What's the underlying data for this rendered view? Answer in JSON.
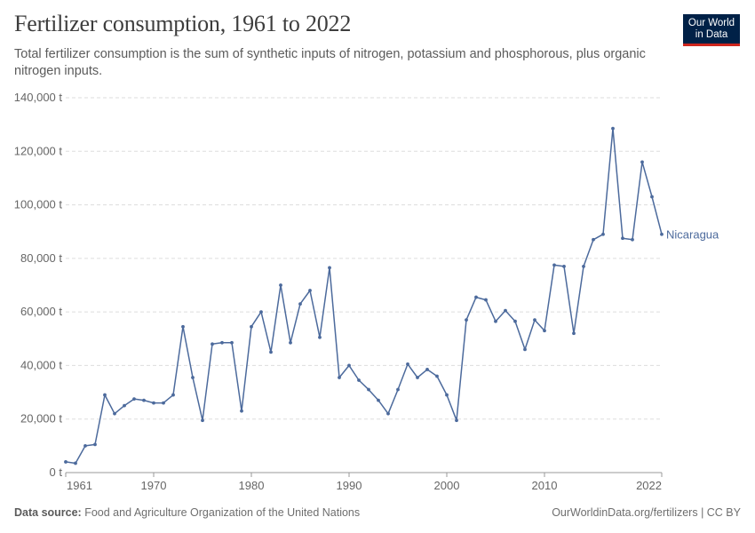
{
  "title": "Fertilizer consumption, 1961 to 2022",
  "subtitle": "Total fertilizer consumption is the sum of synthetic inputs of nitrogen, potassium and phosphorous, plus organic nitrogen inputs.",
  "logo": {
    "line1": "Our World",
    "line2": "in Data"
  },
  "footer": {
    "source_label": "Data source:",
    "source_text": "Food and Agriculture Organization of the United Nations",
    "right_text": "OurWorldinData.org/fertilizers | CC BY"
  },
  "colors": {
    "line": "#4c6a9c",
    "grid": "#dddddd",
    "text": "#5b5b5b",
    "logo_bg": "#002147",
    "logo_accent": "#ce261e"
  },
  "chart_data": {
    "type": "line",
    "title": "Fertilizer consumption, 1961 to 2022",
    "xlim": [
      1961,
      2022
    ],
    "ylim": [
      0,
      140000
    ],
    "x_ticks": [
      1961,
      1970,
      1980,
      1990,
      2000,
      2010,
      2022
    ],
    "y_ticks": [
      0,
      20000,
      40000,
      60000,
      80000,
      100000,
      120000,
      140000
    ],
    "y_tick_labels": [
      "0 t",
      "20,000 t",
      "40,000 t",
      "60,000 t",
      "80,000 t",
      "100,000 t",
      "120,000 t",
      "140,000 t"
    ],
    "grid": "horizontal dashed",
    "series": [
      {
        "name": "Nicaragua",
        "x": [
          1961,
          1962,
          1963,
          1964,
          1965,
          1966,
          1967,
          1968,
          1969,
          1970,
          1971,
          1972,
          1973,
          1974,
          1975,
          1976,
          1977,
          1978,
          1979,
          1980,
          1981,
          1982,
          1983,
          1984,
          1985,
          1986,
          1987,
          1988,
          1989,
          1990,
          1991,
          1992,
          1993,
          1994,
          1995,
          1996,
          1997,
          1998,
          1999,
          2000,
          2001,
          2002,
          2003,
          2004,
          2005,
          2006,
          2007,
          2008,
          2009,
          2010,
          2011,
          2012,
          2013,
          2014,
          2015,
          2016,
          2017,
          2018,
          2019,
          2020,
          2021,
          2022
        ],
        "values": [
          4000,
          3500,
          10000,
          10500,
          29000,
          22000,
          25000,
          27500,
          27000,
          26000,
          26000,
          29000,
          54500,
          35500,
          19500,
          48000,
          48500,
          48500,
          23000,
          54500,
          60000,
          45000,
          70000,
          48500,
          63000,
          68000,
          50500,
          76500,
          35500,
          40000,
          34500,
          31000,
          27000,
          22000,
          31000,
          40500,
          35500,
          38500,
          36000,
          29000,
          19500,
          57000,
          65500,
          64500,
          56500,
          60500,
          56500,
          46000,
          57000,
          53000,
          77500,
          77000,
          52000,
          77000,
          87000,
          89000,
          128500,
          87500,
          87000,
          116000,
          103000,
          89000
        ]
      }
    ]
  }
}
